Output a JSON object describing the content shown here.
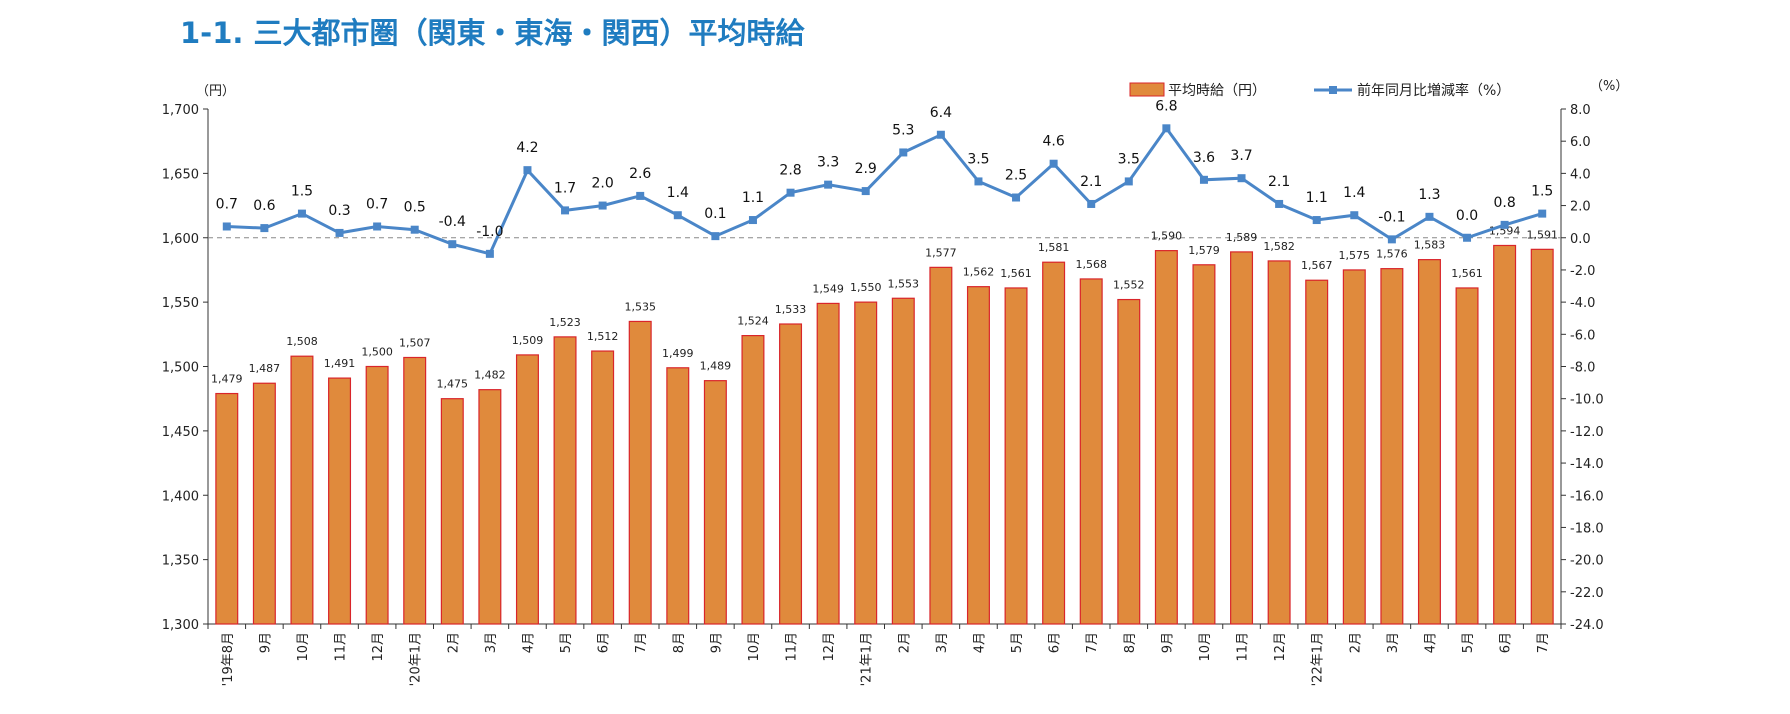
{
  "page": {
    "title": "1-1. 三大都市圏（関東・東海・関西）平均時給"
  },
  "chart_data": {
    "type": "bar",
    "title": "1-1. 三大都市圏（関東・東海・関西）平均時給",
    "left_unit": "（円）",
    "right_unit": "（%）",
    "categories": [
      "'19年8月",
      "9月",
      "10月",
      "11月",
      "12月",
      "'20年1月",
      "2月",
      "3月",
      "4月",
      "5月",
      "6月",
      "7月",
      "8月",
      "9月",
      "10月",
      "11月",
      "12月",
      "'21年1月",
      "2月",
      "3月",
      "4月",
      "5月",
      "6月",
      "7月",
      "8月",
      "9月",
      "10月",
      "11月",
      "12月",
      "'22年1月",
      "2月",
      "3月",
      "4月",
      "5月",
      "6月",
      "7月"
    ],
    "series": [
      {
        "name": "平均時給（円）",
        "type": "bar",
        "axis": "left",
        "color": "#e08a3c",
        "edge_color": "#d9252a",
        "values": [
          1479,
          1487,
          1508,
          1491,
          1500,
          1507,
          1475,
          1482,
          1509,
          1523,
          1512,
          1535,
          1499,
          1489,
          1524,
          1533,
          1549,
          1550,
          1553,
          1577,
          1562,
          1561,
          1581,
          1568,
          1552,
          1590,
          1579,
          1589,
          1582,
          1567,
          1575,
          1576,
          1583,
          1561,
          1594,
          1591
        ]
      },
      {
        "name": "前年同月比増減率（%）",
        "type": "line",
        "axis": "right",
        "color": "#4a86c8",
        "values": [
          0.7,
          0.6,
          1.5,
          0.3,
          0.7,
          0.5,
          -0.4,
          -1.0,
          4.2,
          1.7,
          2.0,
          2.6,
          1.4,
          0.1,
          1.1,
          2.8,
          3.3,
          2.9,
          5.3,
          6.4,
          3.5,
          2.5,
          4.6,
          2.1,
          3.5,
          6.8,
          3.6,
          3.7,
          2.1,
          1.1,
          1.4,
          -0.1,
          1.3,
          0.0,
          0.8,
          1.5
        ]
      }
    ],
    "bar_labels": [
      "1,479",
      "1,487",
      "1,508",
      "1,491",
      "1,500",
      "1,507",
      "1,475",
      "1,482",
      "1,509",
      "1,523",
      "1,512",
      "1,535",
      "1,499",
      "1,489",
      "1,524",
      "1,533",
      "1,549",
      "1,550",
      "1,553",
      "1,577",
      "1,562",
      "1,561",
      "1,581",
      "1,568",
      "1,552",
      "1,590",
      "1,579",
      "1,589",
      "1,582",
      "1,567",
      "1,575",
      "1,576",
      "1,583",
      "1,561",
      "1,594",
      "1,591"
    ],
    "line_labels": [
      "0.7",
      "0.6",
      "1.5",
      "0.3",
      "0.7",
      "0.5",
      "-0.4",
      "-1.0",
      "4.2",
      "1.7",
      "2.0",
      "2.6",
      "1.4",
      "0.1",
      "1.1",
      "2.8",
      "3.3",
      "2.9",
      "5.3",
      "6.4",
      "3.5",
      "2.5",
      "4.6",
      "2.1",
      "3.5",
      "6.8",
      "3.6",
      "3.7",
      "2.1",
      "1.1",
      "1.4",
      "-0.1",
      "1.3",
      "0.0",
      "0.8",
      "1.5"
    ],
    "ylim": [
      1300,
      1700
    ],
    "y_ticks": [
      1300,
      1350,
      1400,
      1450,
      1500,
      1550,
      1600,
      1650,
      1700
    ],
    "y_tick_labels": [
      "1,300",
      "1,350",
      "1,400",
      "1,450",
      "1,500",
      "1,550",
      "1,600",
      "1,650",
      "1,700"
    ],
    "y2lim": [
      -24.0,
      8.0
    ],
    "y2_ticks": [
      -24,
      -22,
      -20,
      -18,
      -16,
      -14,
      -12,
      -10,
      -8,
      -6,
      -4,
      -2,
      0,
      2,
      4,
      6,
      8
    ],
    "y2_tick_labels": [
      "-24.0",
      "-22.0",
      "-20.0",
      "-18.0",
      "-16.0",
      "-14.0",
      "-12.0",
      "-10.0",
      "-8.0",
      "-6.0",
      "-4.0",
      "-2.0",
      "0.0",
      "2.0",
      "4.0",
      "6.0",
      "8.0"
    ],
    "zero_reference_line": "dashed",
    "grid": false,
    "legend": "top-right"
  }
}
